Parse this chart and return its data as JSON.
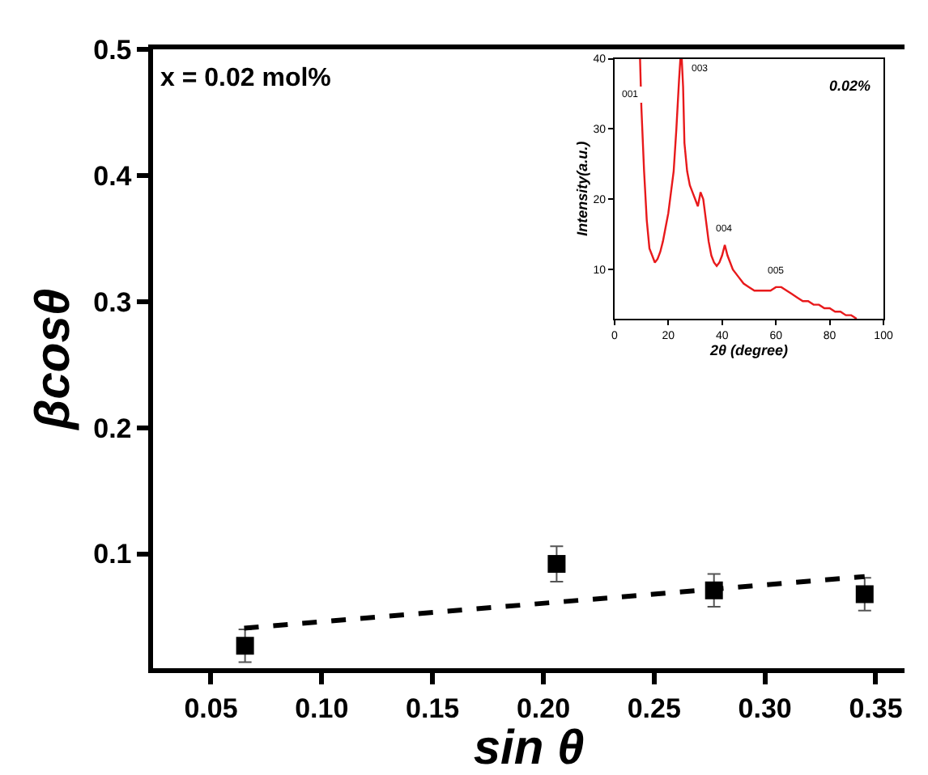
{
  "chart_data": [
    {
      "type": "scatter",
      "xlabel": "sin θ",
      "ylabel": "βcosθ",
      "xlim": [
        0.024,
        0.363
      ],
      "ylim": [
        0.009,
        0.5
      ],
      "xticks": [
        {
          "value": 0.05,
          "label": "0.05"
        },
        {
          "value": 0.1,
          "label": "0.10"
        },
        {
          "value": 0.15,
          "label": "0.15"
        },
        {
          "value": 0.2,
          "label": "0.20"
        },
        {
          "value": 0.25,
          "label": "0.25"
        },
        {
          "value": 0.3,
          "label": "0.30"
        },
        {
          "value": 0.35,
          "label": "0.35"
        }
      ],
      "yticks": [
        0.1,
        0.2,
        0.3,
        0.4,
        0.5
      ],
      "annotations": [
        "x = 0.02 mol%"
      ],
      "series": [
        {
          "type": "scatter",
          "color": "#000000",
          "marker": "square",
          "x": [
            0.0654,
            0.206,
            0.277,
            0.345
          ],
          "values": [
            0.027,
            0.092,
            0.071,
            0.068
          ],
          "errors": [
            0.013,
            0.014,
            0.013,
            0.013
          ]
        },
        {
          "type": "line",
          "color": "#000000",
          "line_style": "dashed",
          "marker": "none",
          "x": [
            0.065,
            0.345
          ],
          "values": [
            0.041,
            0.082
          ]
        }
      ]
    },
    {
      "type": "line",
      "xlabel": "2θ (degree)",
      "ylabel": "Intensity(a.u.)",
      "xlim": [
        0,
        100
      ],
      "ylim": [
        3,
        40
      ],
      "xticks": [
        0,
        20,
        40,
        60,
        80,
        100
      ],
      "yticks": [
        10,
        20,
        30,
        40
      ],
      "annotations": [
        {
          "text": "001",
          "x": 10,
          "y": 33
        },
        {
          "text": "003",
          "x": 25,
          "y": 40
        },
        {
          "text": "004",
          "x": 41,
          "y": 13.5
        },
        {
          "text": "005",
          "x": 60,
          "y": 7.5
        },
        "0.02%"
      ],
      "series": [
        {
          "color": "#e8191b",
          "x": [
            9.5,
            10,
            11,
            12,
            13,
            14,
            15,
            16,
            17,
            18,
            19,
            20,
            21,
            22,
            23,
            24,
            24.5,
            25,
            25.5,
            26,
            27,
            28,
            29,
            30,
            31,
            32,
            33,
            34,
            35,
            36,
            37,
            38,
            39,
            40,
            41,
            42,
            43,
            44,
            46,
            48,
            50,
            52,
            54,
            56,
            58,
            60,
            62,
            64,
            66,
            68,
            70,
            72,
            74,
            76,
            78,
            80,
            82,
            84,
            86,
            88,
            90
          ],
          "values": [
            40,
            33,
            24,
            17,
            13,
            12,
            11,
            11.5,
            12.5,
            14,
            16,
            18,
            21,
            24,
            30,
            37,
            40,
            40,
            36,
            28,
            24,
            22,
            21,
            20,
            19,
            21,
            20,
            17,
            14,
            12,
            11,
            10.5,
            11,
            12,
            13.5,
            12,
            11,
            10,
            9,
            8,
            7.5,
            7,
            7,
            7,
            7,
            7.5,
            7.5,
            7,
            6.5,
            6,
            5.5,
            5.5,
            5,
            5,
            4.5,
            4.5,
            4,
            4,
            3.5,
            3.5,
            3
          ]
        }
      ]
    }
  ]
}
